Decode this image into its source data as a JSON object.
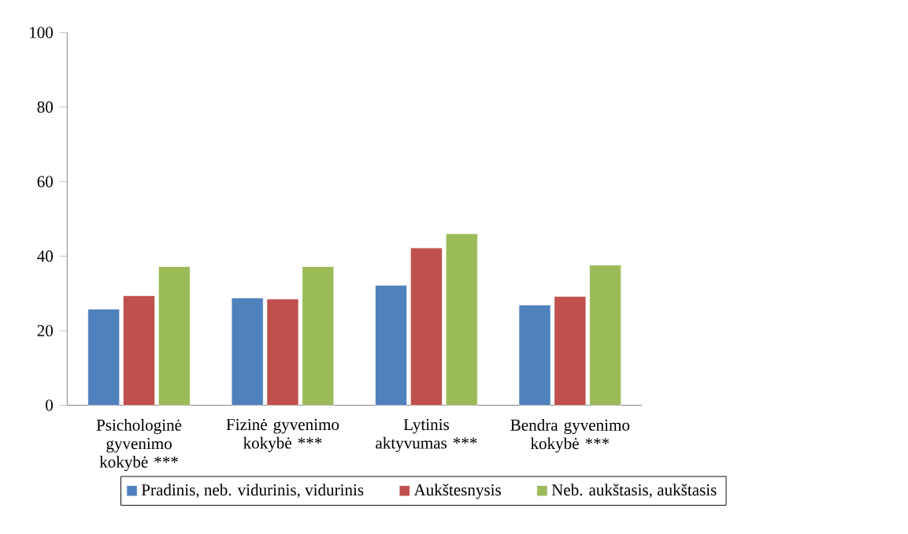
{
  "chart_data": {
    "type": "bar",
    "categories": [
      "Psichologinė gyvenimo kokybė ***",
      "Fizinė gyvenimo kokybė ***",
      "Lytinis aktyvumas ***",
      "Bendra gyvenimo kokybė ***"
    ],
    "series": [
      {
        "name": "Pradinis, neb. vidurinis, vidurinis",
        "color": "#4f81bd",
        "values": [
          25.8,
          28.8,
          32.2,
          26.9
        ]
      },
      {
        "name": "Aukštesnysis",
        "color": "#c0504d",
        "values": [
          29.4,
          28.5,
          42.2,
          29.2
        ]
      },
      {
        "name": "Neb. aukštasis, aukštasis",
        "color": "#9bbb59",
        "values": [
          37.2,
          37.2,
          46.0,
          37.6
        ]
      }
    ],
    "ylim": [
      0,
      100
    ],
    "yticks": [
      0,
      20,
      40,
      60,
      80,
      100
    ],
    "grid": false,
    "legend": "bottom"
  }
}
